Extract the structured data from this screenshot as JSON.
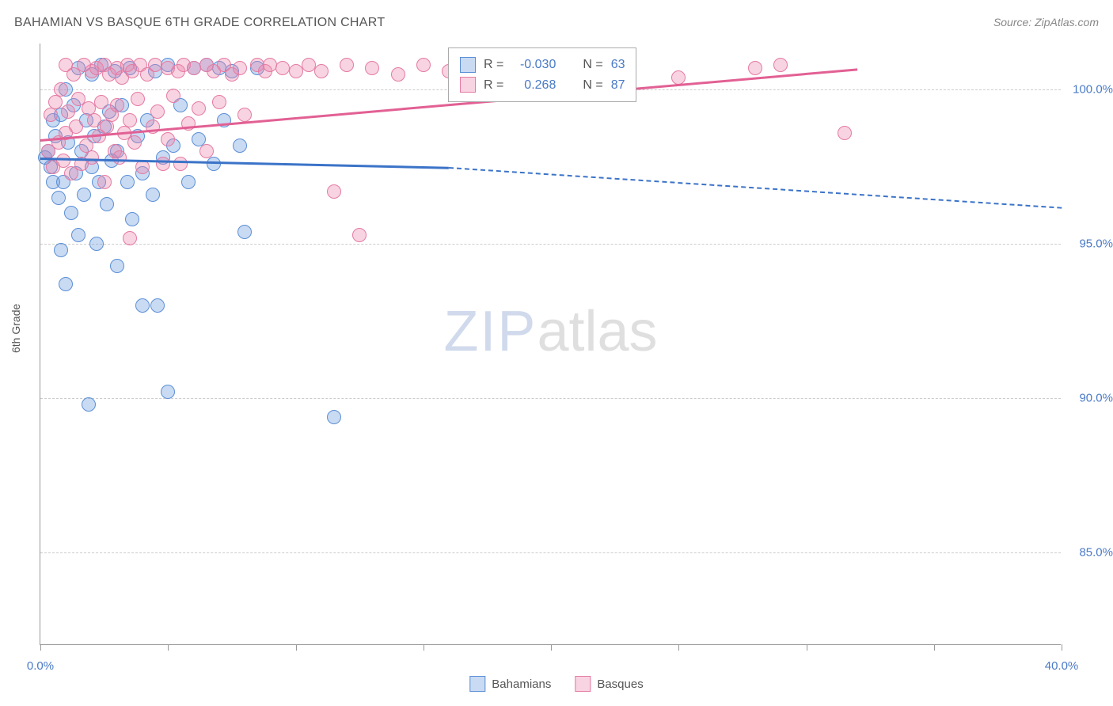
{
  "title": "BAHAMIAN VS BASQUE 6TH GRADE CORRELATION CHART",
  "source": "Source: ZipAtlas.com",
  "y_axis_label": "6th Grade",
  "watermark": {
    "part1": "ZIP",
    "part2": "atlas"
  },
  "chart": {
    "type": "scatter",
    "xlim": [
      0,
      40
    ],
    "ylim": [
      82,
      101.5
    ],
    "x_ticks": [
      0,
      5,
      10,
      15,
      20,
      25,
      30,
      35,
      40
    ],
    "x_tick_labels": {
      "0": "0.0%",
      "40": "40.0%"
    },
    "y_ticks": [
      85,
      90,
      95,
      100
    ],
    "y_tick_labels": {
      "85": "85.0%",
      "90": "90.0%",
      "95": "95.0%",
      "100": "100.0%"
    },
    "background_color": "#ffffff",
    "grid_color": "#cccccc",
    "point_radius": 9,
    "point_stroke_width": 1.5,
    "series": [
      {
        "name": "Bahamians",
        "fill": "rgba(100,150,220,0.35)",
        "stroke": "#5b8fd6",
        "trend_color": "#3b73c8",
        "trend": {
          "x1": 0,
          "y1": 97.8,
          "x2_solid": 16,
          "y2_solid": 97.5,
          "x2_dash": 40,
          "y2_dash": 96.2
        },
        "R": "-0.030",
        "N": "63",
        "points": [
          [
            0.2,
            97.8
          ],
          [
            0.3,
            98.0
          ],
          [
            0.4,
            97.5
          ],
          [
            0.5,
            99.0
          ],
          [
            0.5,
            97.0
          ],
          [
            0.6,
            98.5
          ],
          [
            0.7,
            96.5
          ],
          [
            0.8,
            99.2
          ],
          [
            0.8,
            94.8
          ],
          [
            0.9,
            97.0
          ],
          [
            1.0,
            100.0
          ],
          [
            1.0,
            93.7
          ],
          [
            1.1,
            98.3
          ],
          [
            1.2,
            96.0
          ],
          [
            1.3,
            99.5
          ],
          [
            1.4,
            97.3
          ],
          [
            1.5,
            100.7
          ],
          [
            1.5,
            95.3
          ],
          [
            1.6,
            98.0
          ],
          [
            1.7,
            96.6
          ],
          [
            1.8,
            99.0
          ],
          [
            1.9,
            89.8
          ],
          [
            2.0,
            97.5
          ],
          [
            2.0,
            100.5
          ],
          [
            2.1,
            98.5
          ],
          [
            2.2,
            95.0
          ],
          [
            2.3,
            97.0
          ],
          [
            2.4,
            100.8
          ],
          [
            2.5,
            98.8
          ],
          [
            2.6,
            96.3
          ],
          [
            2.7,
            99.3
          ],
          [
            2.8,
            97.7
          ],
          [
            2.9,
            100.6
          ],
          [
            3.0,
            98.0
          ],
          [
            3.0,
            94.3
          ],
          [
            3.2,
            99.5
          ],
          [
            3.4,
            97.0
          ],
          [
            3.5,
            100.7
          ],
          [
            3.6,
            95.8
          ],
          [
            3.8,
            98.5
          ],
          [
            4.0,
            97.3
          ],
          [
            4.0,
            93.0
          ],
          [
            4.2,
            99.0
          ],
          [
            4.4,
            96.6
          ],
          [
            4.5,
            100.6
          ],
          [
            4.6,
            93.0
          ],
          [
            4.8,
            97.8
          ],
          [
            5.0,
            100.8
          ],
          [
            5.0,
            90.2
          ],
          [
            5.2,
            98.2
          ],
          [
            5.5,
            99.5
          ],
          [
            5.8,
            97.0
          ],
          [
            6.0,
            100.7
          ],
          [
            6.2,
            98.4
          ],
          [
            6.5,
            100.8
          ],
          [
            6.8,
            97.6
          ],
          [
            7.0,
            100.7
          ],
          [
            7.2,
            99.0
          ],
          [
            7.5,
            100.6
          ],
          [
            7.8,
            98.2
          ],
          [
            8.0,
            95.4
          ],
          [
            8.5,
            100.7
          ],
          [
            11.5,
            89.4
          ]
        ]
      },
      {
        "name": "Basques",
        "fill": "rgba(235,130,170,0.35)",
        "stroke": "#e57ba3",
        "trend_color": "#e26094",
        "trend": {
          "x1": 0,
          "y1": 98.4,
          "x2_solid": 32,
          "y2_solid": 100.7,
          "x2_dash": 32,
          "y2_dash": 100.7
        },
        "R": "0.268",
        "N": "87",
        "points": [
          [
            0.3,
            98.0
          ],
          [
            0.4,
            99.2
          ],
          [
            0.5,
            97.5
          ],
          [
            0.6,
            99.6
          ],
          [
            0.7,
            98.3
          ],
          [
            0.8,
            100.0
          ],
          [
            0.9,
            97.7
          ],
          [
            1.0,
            100.8
          ],
          [
            1.0,
            98.6
          ],
          [
            1.1,
            99.3
          ],
          [
            1.2,
            97.3
          ],
          [
            1.3,
            100.5
          ],
          [
            1.4,
            98.8
          ],
          [
            1.5,
            99.7
          ],
          [
            1.6,
            97.6
          ],
          [
            1.7,
            100.8
          ],
          [
            1.8,
            98.2
          ],
          [
            1.9,
            99.4
          ],
          [
            2.0,
            100.6
          ],
          [
            2.0,
            97.8
          ],
          [
            2.1,
            99.0
          ],
          [
            2.2,
            100.7
          ],
          [
            2.3,
            98.5
          ],
          [
            2.4,
            99.6
          ],
          [
            2.5,
            100.8
          ],
          [
            2.5,
            97.0
          ],
          [
            2.6,
            98.8
          ],
          [
            2.7,
            100.5
          ],
          [
            2.8,
            99.2
          ],
          [
            2.9,
            98.0
          ],
          [
            3.0,
            100.7
          ],
          [
            3.0,
            99.5
          ],
          [
            3.1,
            97.8
          ],
          [
            3.2,
            100.4
          ],
          [
            3.3,
            98.6
          ],
          [
            3.4,
            100.8
          ],
          [
            3.5,
            99.0
          ],
          [
            3.5,
            95.2
          ],
          [
            3.6,
            100.6
          ],
          [
            3.7,
            98.3
          ],
          [
            3.8,
            99.7
          ],
          [
            3.9,
            100.8
          ],
          [
            4.0,
            97.5
          ],
          [
            4.2,
            100.5
          ],
          [
            4.4,
            98.8
          ],
          [
            4.5,
            100.8
          ],
          [
            4.6,
            99.3
          ],
          [
            4.8,
            97.6
          ],
          [
            5.0,
            100.7
          ],
          [
            5.0,
            98.4
          ],
          [
            5.2,
            99.8
          ],
          [
            5.4,
            100.6
          ],
          [
            5.5,
            97.6
          ],
          [
            5.6,
            100.8
          ],
          [
            5.8,
            98.9
          ],
          [
            6.0,
            100.7
          ],
          [
            6.2,
            99.4
          ],
          [
            6.5,
            100.8
          ],
          [
            6.5,
            98.0
          ],
          [
            6.8,
            100.6
          ],
          [
            7.0,
            99.6
          ],
          [
            7.2,
            100.8
          ],
          [
            7.5,
            100.5
          ],
          [
            7.8,
            100.7
          ],
          [
            8.0,
            99.2
          ],
          [
            8.5,
            100.8
          ],
          [
            8.8,
            100.6
          ],
          [
            9.0,
            100.8
          ],
          [
            9.5,
            100.7
          ],
          [
            10.0,
            100.6
          ],
          [
            10.5,
            100.8
          ],
          [
            11.0,
            100.6
          ],
          [
            11.5,
            96.7
          ],
          [
            12.0,
            100.8
          ],
          [
            12.5,
            95.3
          ],
          [
            13.0,
            100.7
          ],
          [
            14.0,
            100.5
          ],
          [
            15.0,
            100.8
          ],
          [
            16.0,
            100.6
          ],
          [
            17.5,
            100.8
          ],
          [
            19.0,
            100.6
          ],
          [
            21.0,
            100.8
          ],
          [
            23.0,
            100.7
          ],
          [
            25.0,
            100.4
          ],
          [
            28.0,
            100.7
          ],
          [
            29.0,
            100.8
          ],
          [
            31.5,
            98.6
          ]
        ]
      }
    ]
  },
  "legend_top": {
    "rows": [
      {
        "swatch_fill": "rgba(100,150,220,0.35)",
        "swatch_stroke": "#5b8fd6",
        "r_label": "R =",
        "r_val": "-0.030",
        "n_label": "N =",
        "n_val": "63"
      },
      {
        "swatch_fill": "rgba(235,130,170,0.35)",
        "swatch_stroke": "#e57ba3",
        "r_label": "R =",
        "r_val": "0.268",
        "n_label": "N =",
        "n_val": "87"
      }
    ]
  },
  "legend_bottom": {
    "items": [
      {
        "label": "Bahamians",
        "fill": "rgba(100,150,220,0.35)",
        "stroke": "#5b8fd6"
      },
      {
        "label": "Basques",
        "fill": "rgba(235,130,170,0.35)",
        "stroke": "#e57ba3"
      }
    ]
  }
}
